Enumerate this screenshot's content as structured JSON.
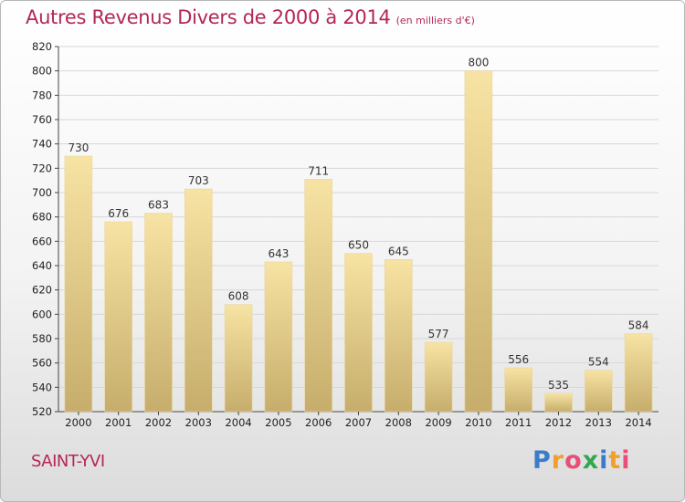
{
  "header": {
    "title": "Autres Revenus Divers de 2000 à 2014",
    "unit": "(en milliers d'€)"
  },
  "footer": {
    "commune": "SAINT-YVI",
    "logo_letters": [
      "P",
      "r",
      "o",
      "x",
      "i",
      "t",
      "i"
    ],
    "logo_colors": [
      "#3a7cc9",
      "#f0a02a",
      "#e94e77",
      "#2fa84f",
      "#3a7cc9",
      "#f0a02a",
      "#e94e77"
    ]
  },
  "colors": {
    "title": "#b3265a",
    "bar_light": "#f7e3a3",
    "bar_dark": "#c6ad6c",
    "grid": "#d7d7d7",
    "axis": "#444444"
  },
  "chart_data": {
    "type": "bar",
    "categories": [
      "2000",
      "2001",
      "2002",
      "2003",
      "2004",
      "2005",
      "2006",
      "2007",
      "2008",
      "2009",
      "2010",
      "2011",
      "2012",
      "2013",
      "2014"
    ],
    "series": [
      {
        "values": [
          730,
          676,
          683,
          703,
          608,
          643,
          711,
          650,
          645,
          577,
          800,
          556,
          535,
          554,
          584
        ]
      }
    ],
    "ylim": [
      520,
      820
    ],
    "yticks": [
      520,
      540,
      560,
      580,
      600,
      620,
      640,
      660,
      680,
      700,
      720,
      740,
      760,
      780,
      800,
      820
    ],
    "grid": "horizontal",
    "data_labels": true
  }
}
